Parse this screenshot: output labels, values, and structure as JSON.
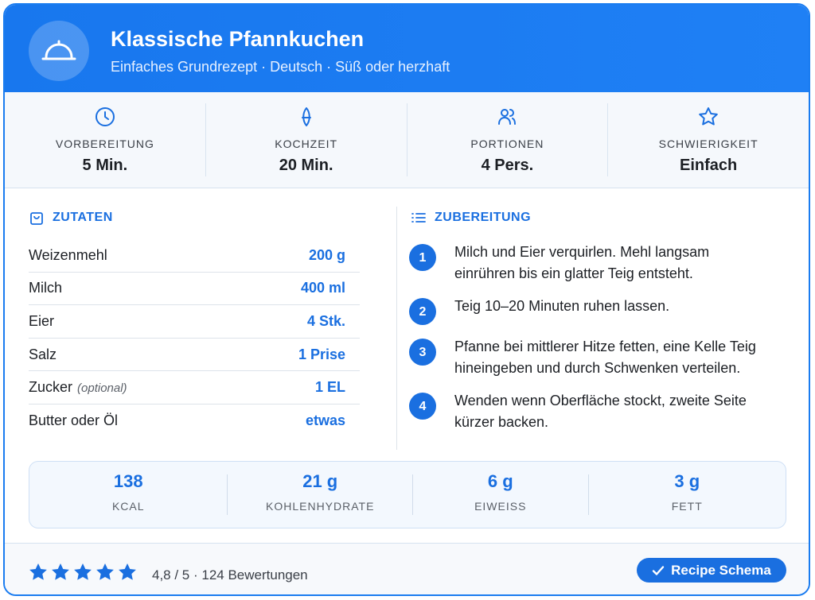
{
  "header": {
    "title": "Klassische Pfannkuchen",
    "subtitle": "Einfaches Grundrezept · Deutsch · Süß oder herzhaft"
  },
  "stats": [
    {
      "label": "VORBEREITUNG",
      "value": "5 Min."
    },
    {
      "label": "KOCHZEIT",
      "value": "20 Min."
    },
    {
      "label": "PORTIONEN",
      "value": "4 Pers."
    },
    {
      "label": "SCHWIERIGKEIT",
      "value": "Einfach"
    }
  ],
  "ingredients": {
    "heading": "ZUTATEN",
    "items": [
      {
        "name": "Weizenmehl",
        "amount": "200 g"
      },
      {
        "name": "Milch",
        "amount": "400 ml"
      },
      {
        "name": "Eier",
        "amount": "4 Stk."
      },
      {
        "name": "Salz",
        "amount": "1 Prise"
      },
      {
        "name": "Zucker",
        "note": "(optional)",
        "amount": "1 EL"
      },
      {
        "name": "Butter oder Öl",
        "amount": "etwas"
      }
    ]
  },
  "steps": {
    "heading": "ZUBEREITUNG",
    "items": [
      {
        "number": "1",
        "text": "Milch und Eier verquirlen. Mehl langsam einrühren bis ein glatter Teig entsteht."
      },
      {
        "number": "2",
        "text": "Teig 10–20 Minuten ruhen lassen."
      },
      {
        "number": "3",
        "text": "Pfanne bei mittlerer Hitze fetten, eine Kelle Teig hineingeben und durch Schwenken verteilen."
      },
      {
        "number": "4",
        "text": "Wenden wenn Oberfläche stockt, zweite Seite kürzer backen."
      }
    ]
  },
  "nutrition": [
    {
      "value": "138",
      "label": "KCAL"
    },
    {
      "value": "21 g",
      "label": "KOHLENHYDRATE"
    },
    {
      "value": "6 g",
      "label": "EIWEISS"
    },
    {
      "value": "3 g",
      "label": "FETT"
    }
  ],
  "footer": {
    "rating": "4,8 / 5 · 124 Bewertungen",
    "button": "Recipe Schema"
  }
}
